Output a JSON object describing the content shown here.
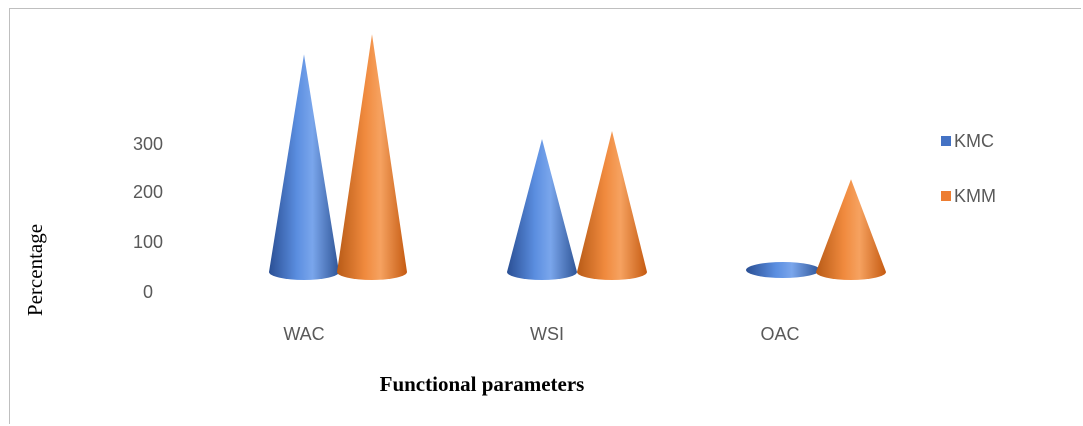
{
  "chart_data": {
    "type": "bar",
    "subtype": "3d-cone",
    "categories": [
      "WAC",
      "WSI",
      "OAC"
    ],
    "series": [
      {
        "name": "KMC",
        "values": [
          270,
          165,
          15
        ],
        "color": "#4472C4"
      },
      {
        "name": "KMM",
        "values": [
          295,
          175,
          115
        ],
        "color": "#ED7D31"
      }
    ],
    "xlabel": "Functional parameters",
    "ylabel": "Percentage",
    "y_ticks": [
      "300",
      "200",
      "100",
      "0"
    ],
    "ylim": [
      0,
      300
    ],
    "legend_position": "right",
    "grid": false
  }
}
